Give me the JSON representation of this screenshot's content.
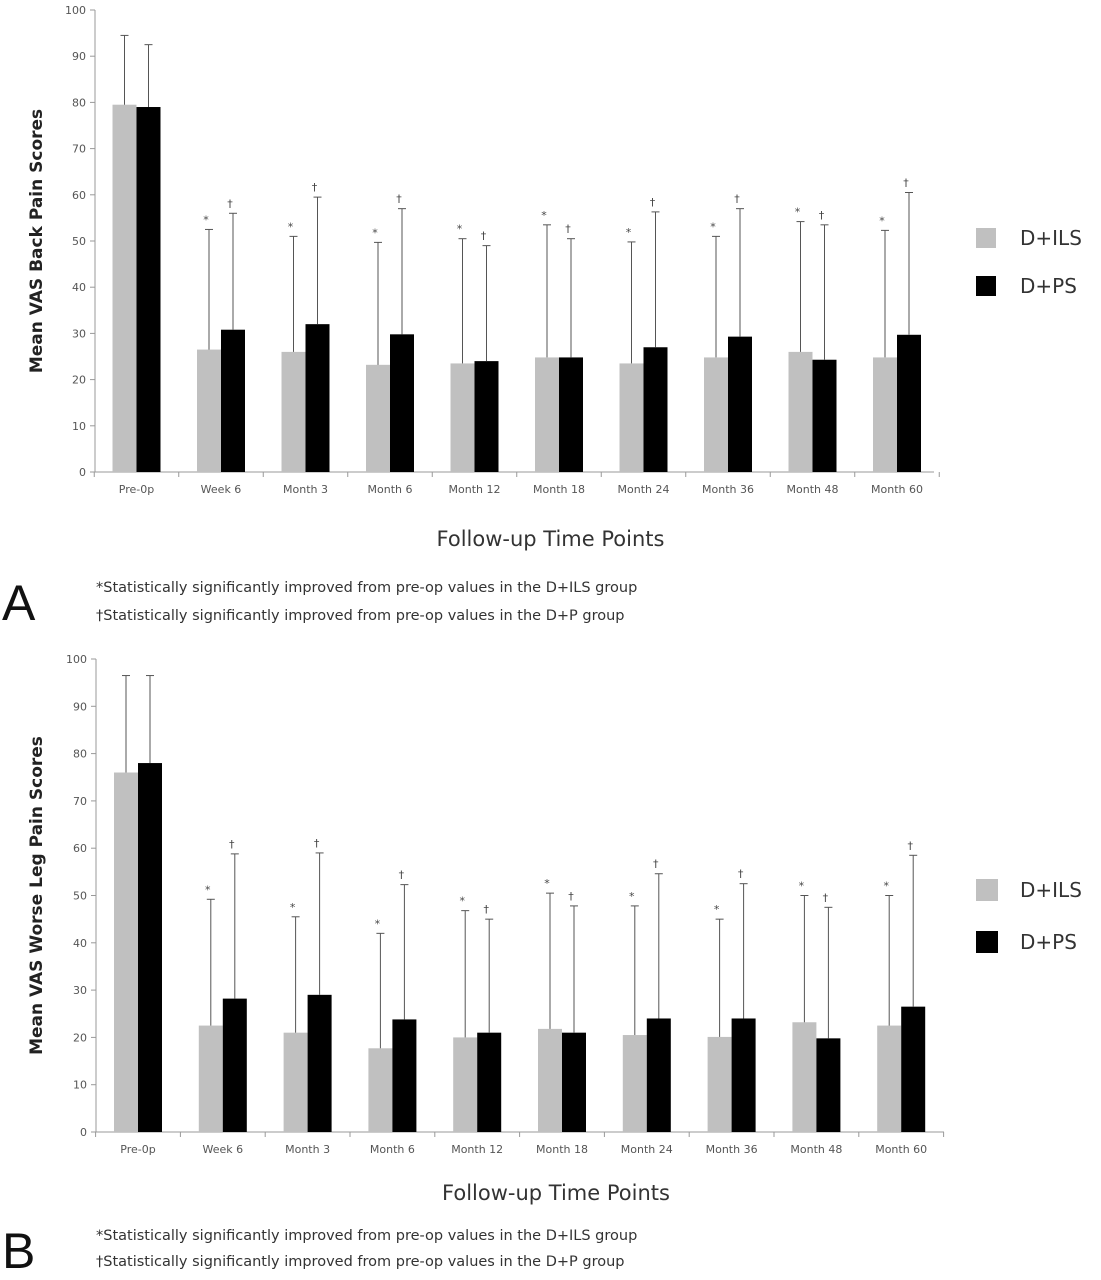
{
  "chart_data": [
    {
      "type": "bar",
      "panel_label": "A",
      "ylabel": "Mean VAS Back Pain Scores",
      "xlabel": "Follow-up Time Points",
      "ylim": [
        0,
        100
      ],
      "yticks": [
        "0",
        "10",
        "20",
        "30",
        "40",
        "50",
        "60",
        "70",
        "80",
        "90",
        "100"
      ],
      "categories": [
        "Pre-0p",
        "Week 6",
        "Month 3",
        "Month 6",
        "Month 12",
        "Month 18",
        "Month 24",
        "Month 36",
        "Month 48",
        "Month 60"
      ],
      "series": [
        {
          "name": "D+ILS",
          "color": "#c0c0c0",
          "values": [
            79.5,
            26.5,
            26,
            23.2,
            23.5,
            24.8,
            23.5,
            24.8,
            26,
            24.8
          ],
          "error_upper": [
            94.5,
            52.5,
            51,
            49.7,
            50.5,
            53.5,
            49.8,
            51,
            54.2,
            52.3
          ],
          "markers": [
            "",
            "*",
            "*",
            "*",
            "*",
            "*",
            "*",
            "*",
            "*",
            "*"
          ]
        },
        {
          "name": "D+PS",
          "color": "#000000",
          "values": [
            79,
            30.8,
            32,
            29.8,
            24,
            24.8,
            27,
            29.3,
            24.3,
            29.7
          ],
          "error_upper": [
            92.5,
            56,
            59.5,
            57,
            49,
            50.5,
            56.3,
            57,
            53.5,
            60.5
          ],
          "markers": [
            "",
            "†",
            "†",
            "†",
            "†",
            "†",
            "†",
            "†",
            "†",
            "†"
          ]
        }
      ],
      "footnotes": [
        "*Statistically significantly improved from pre-op values in the D+ILS group",
        "†Statistically significantly improved from pre-op values in the D+P group"
      ]
    },
    {
      "type": "bar",
      "panel_label": "B",
      "ylabel": "Mean VAS Worse Leg Pain Scores",
      "xlabel": "Follow-up Time Points",
      "ylim": [
        0,
        100
      ],
      "yticks": [
        "0",
        "10",
        "20",
        "30",
        "40",
        "50",
        "60",
        "70",
        "80",
        "90",
        "100"
      ],
      "categories": [
        "Pre-0p",
        "Week 6",
        "Month 3",
        "Month 6",
        "Month 12",
        "Month 18",
        "Month 24",
        "Month 36",
        "Month 48",
        "Month 60"
      ],
      "series": [
        {
          "name": "D+ILS",
          "color": "#c0c0c0",
          "values": [
            76,
            22.5,
            21,
            17.7,
            20,
            21.8,
            20.5,
            20.1,
            23.2,
            22.5
          ],
          "error_upper": [
            96.5,
            49.2,
            45.5,
            42,
            46.8,
            50.5,
            47.8,
            45,
            50,
            50
          ],
          "markers": [
            "",
            "*",
            "*",
            "*",
            "*",
            "*",
            "*",
            "*",
            "*",
            "*"
          ]
        },
        {
          "name": "D+PS",
          "color": "#000000",
          "values": [
            78,
            28.2,
            29,
            23.8,
            21,
            21,
            24,
            24,
            19.8,
            26.5
          ],
          "error_upper": [
            96.5,
            58.8,
            59,
            52.3,
            45,
            47.8,
            54.6,
            52.5,
            47.5,
            58.5
          ],
          "markers": [
            "",
            "†",
            "†",
            "†",
            "†",
            "†",
            "†",
            "†",
            "†",
            "†"
          ]
        }
      ],
      "footnotes": [
        "*Statistically significantly improved from pre-op values in the D+ILS group",
        "†Statistically significantly improved from pre-op values in the D+P group"
      ]
    }
  ]
}
